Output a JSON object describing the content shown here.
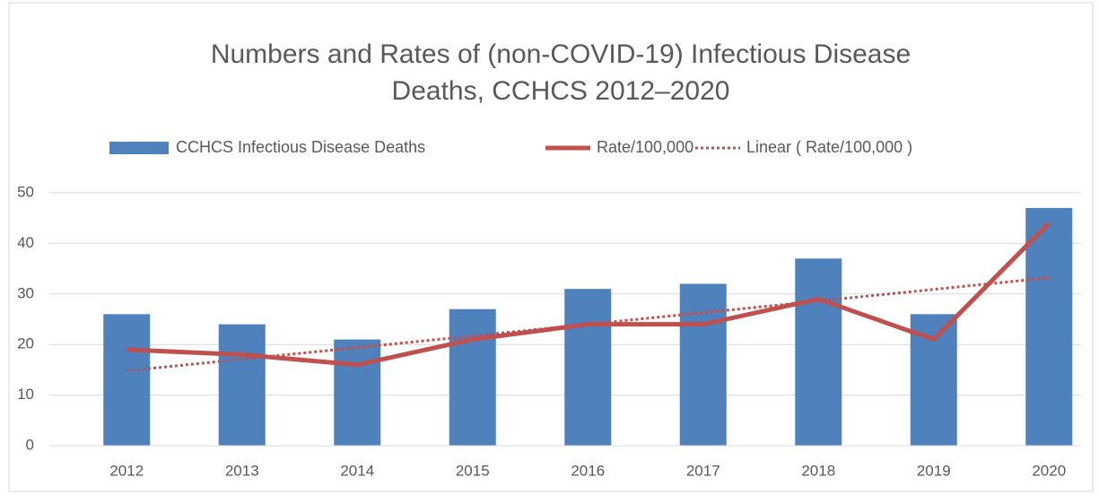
{
  "chart_data": {
    "type": "bar",
    "title": [
      "Numbers and Rates of (non-COVID-19) Infectious Disease",
      "Deaths, CCHCS 2012–2020"
    ],
    "categories": [
      "2012",
      "2013",
      "2014",
      "2015",
      "2016",
      "2017",
      "2018",
      "2019",
      "2020"
    ],
    "series": [
      {
        "name": "CCHCS Infectious Disease Deaths",
        "type": "bar",
        "color": "#4f81bd",
        "values": [
          26,
          24,
          21,
          27,
          31,
          32,
          37,
          26,
          47
        ]
      },
      {
        "name": "Rate/100,000",
        "type": "line",
        "color": "#c0504d",
        "values": [
          19,
          18,
          16,
          21,
          24,
          24,
          29,
          21,
          44
        ]
      },
      {
        "name": "Linear ( Rate/100,000 )",
        "type": "trendline",
        "color": "#c0504d",
        "values": [
          14.8,
          17.1,
          19.4,
          21.7,
          24,
          26.3,
          28.6,
          30.9,
          33.2
        ]
      }
    ],
    "ylim": [
      0,
      50
    ],
    "yticks": [
      0,
      10,
      20,
      30,
      40,
      50
    ],
    "grid": true,
    "legend": "top"
  }
}
